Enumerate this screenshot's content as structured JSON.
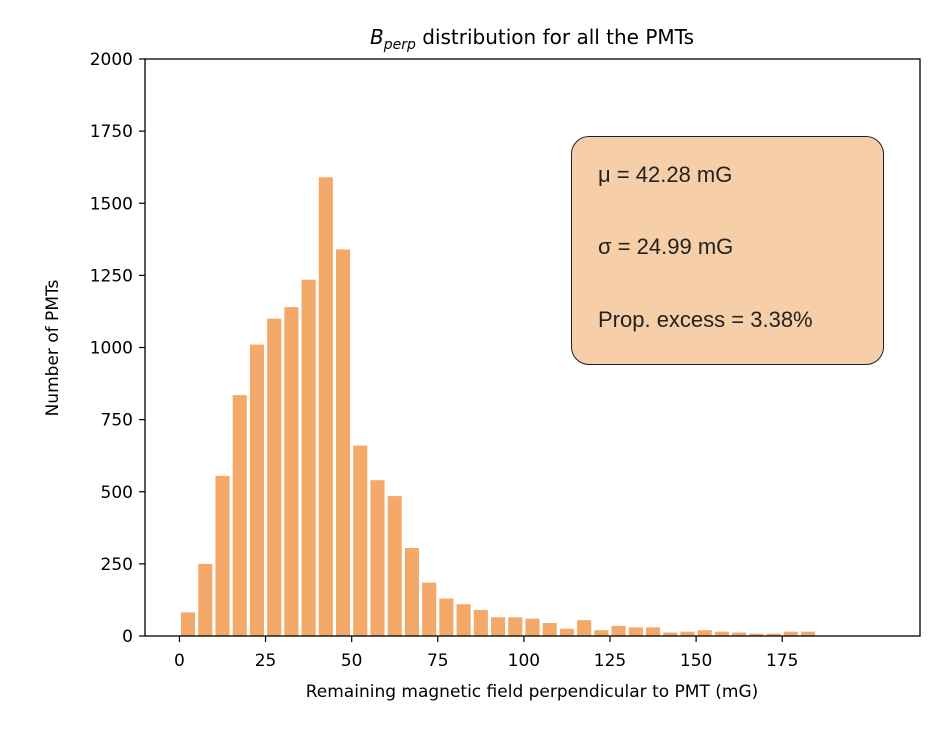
{
  "chart_data": {
    "type": "bar",
    "title_main": "B",
    "title_sub": "perp",
    "title_rest": " distribution for all the PMTs",
    "xlabel": "Remaining magnetic field perpendicular to PMT (mG)",
    "ylabel": "Number of PMTs",
    "xlim": [
      -10,
      215
    ],
    "ylim": [
      0,
      2000
    ],
    "xticks": [
      0,
      25,
      50,
      75,
      100,
      125,
      150,
      175
    ],
    "xtick_labels": [
      "0",
      "25",
      "50",
      "75",
      "100",
      "125",
      "150",
      "175"
    ],
    "yticks": [
      0,
      250,
      500,
      750,
      1000,
      1250,
      1500,
      1750,
      2000
    ],
    "ytick_labels": [
      "0",
      "250",
      "500",
      "750",
      "1000",
      "1250",
      "1500",
      "1750",
      "2000"
    ],
    "bar_color": "#f4a96a",
    "bin_width": 5,
    "x": [
      2.5,
      7.5,
      12.5,
      17.5,
      22.5,
      27.5,
      32.5,
      37.5,
      42.5,
      47.5,
      52.5,
      57.5,
      62.5,
      67.5,
      72.5,
      77.5,
      82.5,
      87.5,
      92.5,
      97.5,
      102.5,
      107.5,
      112.5,
      117.5,
      122.5,
      127.5,
      132.5,
      137.5,
      142.5,
      147.5,
      152.5,
      157.5,
      162.5,
      167.5,
      172.5,
      177.5,
      182.5
    ],
    "values": [
      82,
      250,
      555,
      835,
      1010,
      1100,
      1140,
      1235,
      1590,
      1340,
      660,
      540,
      485,
      305,
      185,
      130,
      110,
      90,
      65,
      65,
      60,
      45,
      25,
      55,
      20,
      35,
      30,
      30,
      12,
      15,
      20,
      15,
      12,
      8,
      8,
      15,
      15
    ],
    "annotation": {
      "mu": "μ = 42.28 mG",
      "sigma": "σ = 24.99 mG",
      "excess": "Prop. excess = 3.38%",
      "background": "#f6cfa8"
    }
  }
}
